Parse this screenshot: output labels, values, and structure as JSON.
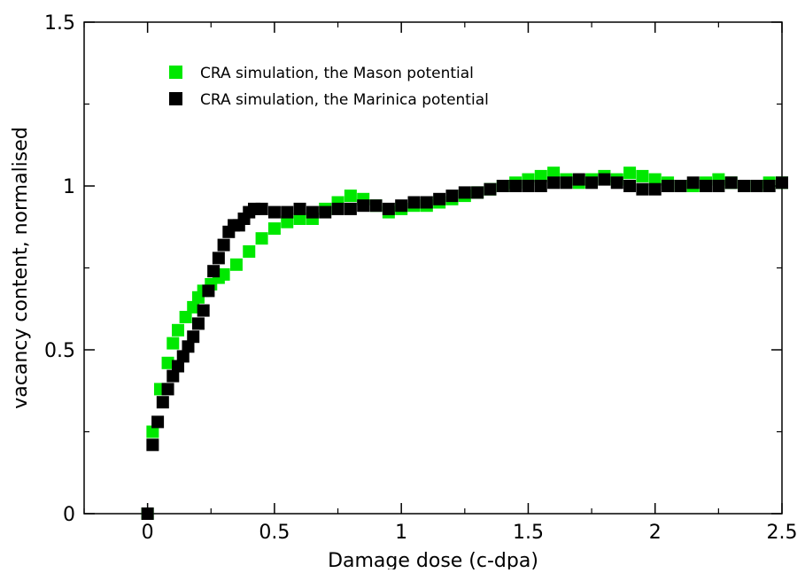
{
  "chart_data": {
    "type": "scatter",
    "xlabel": "Damage dose (c-dpa)",
    "ylabel": "vacancy content, normalised",
    "xlim": [
      -0.25,
      2.5
    ],
    "ylim": [
      0,
      1.5
    ],
    "xticks": [
      0,
      0.5,
      1,
      1.5,
      2,
      2.5
    ],
    "xtick_labels": [
      "0",
      "0.5",
      "1",
      "1.5",
      "2",
      "2.5"
    ],
    "yticks": [
      0,
      0.5,
      1,
      1.5
    ],
    "ytick_labels": [
      "0",
      "0.5",
      "1",
      "1.5"
    ],
    "grid": false,
    "legend_position": "top-left",
    "series": [
      {
        "name": "CRA simulation, the Mason potential",
        "color": "#00e800",
        "x": [
          0.0,
          0.02,
          0.05,
          0.08,
          0.1,
          0.12,
          0.15,
          0.18,
          0.2,
          0.22,
          0.25,
          0.28,
          0.3,
          0.35,
          0.4,
          0.45,
          0.5,
          0.55,
          0.6,
          0.65,
          0.7,
          0.75,
          0.8,
          0.85,
          0.9,
          0.95,
          1.0,
          1.05,
          1.1,
          1.15,
          1.2,
          1.25,
          1.3,
          1.35,
          1.4,
          1.45,
          1.5,
          1.55,
          1.6,
          1.65,
          1.7,
          1.75,
          1.8,
          1.85,
          1.9,
          1.95,
          2.0,
          2.05,
          2.1,
          2.15,
          2.2,
          2.25,
          2.3,
          2.35,
          2.4,
          2.45,
          2.5
        ],
        "y": [
          0.0,
          0.25,
          0.38,
          0.46,
          0.52,
          0.56,
          0.6,
          0.63,
          0.66,
          0.68,
          0.7,
          0.72,
          0.73,
          0.76,
          0.8,
          0.84,
          0.87,
          0.89,
          0.9,
          0.9,
          0.93,
          0.95,
          0.97,
          0.96,
          0.94,
          0.92,
          0.93,
          0.94,
          0.94,
          0.95,
          0.96,
          0.97,
          0.98,
          0.99,
          1.0,
          1.01,
          1.02,
          1.03,
          1.04,
          1.02,
          1.01,
          1.02,
          1.03,
          1.02,
          1.04,
          1.03,
          1.02,
          1.01,
          1.0,
          1.0,
          1.01,
          1.02,
          1.01,
          1.0,
          1.0,
          1.01,
          1.01
        ]
      },
      {
        "name": "CRA simulation, the Marinica potential",
        "color": "#000000",
        "x": [
          0.0,
          0.02,
          0.04,
          0.06,
          0.08,
          0.1,
          0.12,
          0.14,
          0.16,
          0.18,
          0.2,
          0.22,
          0.24,
          0.26,
          0.28,
          0.3,
          0.32,
          0.34,
          0.36,
          0.38,
          0.4,
          0.42,
          0.45,
          0.5,
          0.55,
          0.6,
          0.65,
          0.7,
          0.75,
          0.8,
          0.85,
          0.9,
          0.95,
          1.0,
          1.05,
          1.1,
          1.15,
          1.2,
          1.25,
          1.3,
          1.35,
          1.4,
          1.45,
          1.5,
          1.55,
          1.6,
          1.65,
          1.7,
          1.75,
          1.8,
          1.85,
          1.9,
          1.95,
          2.0,
          2.05,
          2.1,
          2.15,
          2.2,
          2.25,
          2.3,
          2.35,
          2.4,
          2.45,
          2.5
        ],
        "y": [
          0.0,
          0.21,
          0.28,
          0.34,
          0.38,
          0.42,
          0.45,
          0.48,
          0.51,
          0.54,
          0.58,
          0.62,
          0.68,
          0.74,
          0.78,
          0.82,
          0.86,
          0.88,
          0.88,
          0.9,
          0.92,
          0.93,
          0.93,
          0.92,
          0.92,
          0.93,
          0.92,
          0.92,
          0.93,
          0.93,
          0.94,
          0.94,
          0.93,
          0.94,
          0.95,
          0.95,
          0.96,
          0.97,
          0.98,
          0.98,
          0.99,
          1.0,
          1.0,
          1.0,
          1.0,
          1.01,
          1.01,
          1.02,
          1.01,
          1.02,
          1.01,
          1.0,
          0.99,
          0.99,
          1.0,
          1.0,
          1.01,
          1.0,
          1.0,
          1.01,
          1.0,
          1.0,
          1.0,
          1.01
        ]
      }
    ]
  }
}
